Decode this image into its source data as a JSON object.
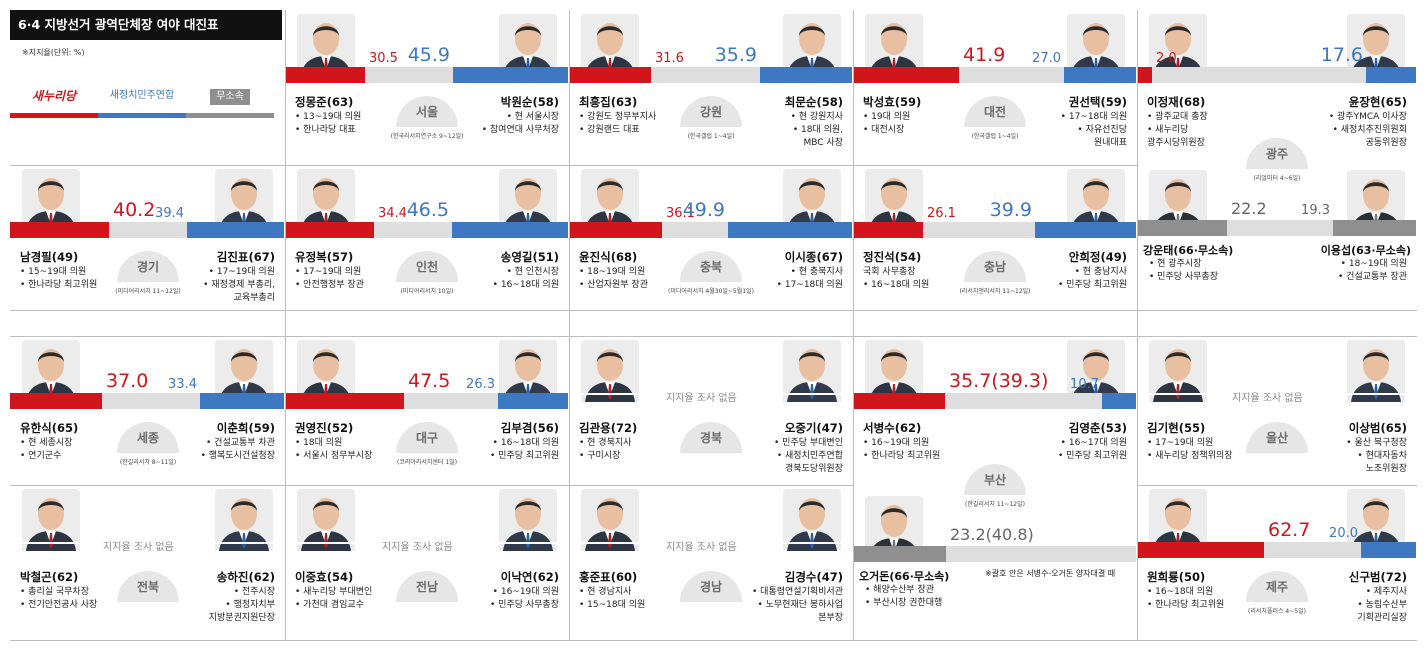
{
  "header": {
    "title": "6·4 지방선거 광역단체장 여야 대진표",
    "unit": "※지지율(단위: %)",
    "parties": [
      {
        "label": "새누리당",
        "color": "#d0161b"
      },
      {
        "label": "새정치민주연합",
        "color": "#3f78c2"
      },
      {
        "label": "무소속",
        "color": "#8f8f8f"
      }
    ]
  },
  "no_survey_label": "지지율 조사 없음",
  "regions": [
    {
      "region": "서울",
      "source": "(한국리서치연구소 9~12일)",
      "left": {
        "name": "정몽준(63)",
        "pct": "30.5",
        "lines": [
          "• 13~19대 의원",
          "• 한나라당 대표"
        ]
      },
      "right": {
        "name": "박원순(58)",
        "pct": "45.9",
        "lines": [
          "• 현 서울시장",
          "• 참여연대 사무처장"
        ]
      }
    },
    {
      "region": "강원",
      "source": "(한국갤럽 1~4일)",
      "left": {
        "name": "최흥집(63)",
        "pct": "31.6",
        "lines": [
          "• 강원도 정무부지사",
          "• 강원랜드 대표"
        ]
      },
      "right": {
        "name": "최문순(58)",
        "pct": "35.9",
        "lines": [
          "• 현 강원지사",
          "• 18대 의원,",
          "MBC 사장"
        ]
      }
    },
    {
      "region": "대전",
      "source": "(한국갤럽 1~4일)",
      "left": {
        "name": "박성효(59)",
        "pct": "41.9",
        "lines": [
          "• 19대 의원",
          "• 대전시장"
        ]
      },
      "right": {
        "name": "권선택(59)",
        "pct": "27.0",
        "lines": [
          "• 17~18대 의원",
          "• 자유선진당",
          "원내대표"
        ]
      }
    },
    {
      "region": "광주",
      "source": "(리얼미터 4~6일)",
      "left": {
        "name": "이정재(68)",
        "pct": "2.0",
        "lines": [
          "• 광주교대 총장",
          "• 새누리당",
          "광주시당위원장"
        ]
      },
      "right": {
        "name": "윤장현(65)",
        "pct": "17.6",
        "lines": [
          "• 광주YMCA 이사장",
          "• 새정치추진위원회",
          "공동위원장"
        ]
      },
      "extra_left": {
        "name": "강운태(66·무소속)",
        "pct": "22.2",
        "lines": [
          "• 현 광주시장",
          "• 민주당 사무총장"
        ]
      },
      "extra_right": {
        "name": "이용섭(63·무소속)",
        "pct": "19.3",
        "lines": [
          "• 18~19대 의원",
          "• 건설교통부 장관"
        ]
      }
    },
    {
      "region": "경기",
      "source": "(미디어리서치 11~12일)",
      "left": {
        "name": "남경필(49)",
        "pct": "40.2",
        "lines": [
          "• 15~19대 의원",
          "• 한나라당 최고위원"
        ]
      },
      "right": {
        "name": "김진표(67)",
        "pct": "39.4",
        "lines": [
          "• 17~19대 의원",
          "• 재정경제 부총리,",
          "교육부총리"
        ]
      }
    },
    {
      "region": "인천",
      "source": "(미디어리서치 10일)",
      "left": {
        "name": "유정복(57)",
        "pct": "34.4",
        "lines": [
          "• 17~19대 의원",
          "• 안전행정부 장관"
        ]
      },
      "right": {
        "name": "송영길(51)",
        "pct": "46.5",
        "lines": [
          "• 현 인천시장",
          "• 16~18대 의원"
        ]
      }
    },
    {
      "region": "충북",
      "source": "(미디어리서치 4월30일~5월1일)",
      "left": {
        "name": "윤진식(68)",
        "pct": "36.1",
        "lines": [
          "• 18~19대 의원",
          "• 산업자원부 장관"
        ]
      },
      "right": {
        "name": "이시종(67)",
        "pct": "49.9",
        "lines": [
          "• 현 충북지사",
          "• 17~18대 의원"
        ]
      }
    },
    {
      "region": "충남",
      "source": "(리서치앤리서치 11~12일)",
      "left": {
        "name": "정진석(54)",
        "pct": "26.1",
        "lines": [
          "국회 사무총장",
          "• 16~18대 의원"
        ]
      },
      "right": {
        "name": "안희정(49)",
        "pct": "39.9",
        "lines": [
          "• 현 충남지사",
          "• 민주당 최고위원"
        ]
      }
    },
    {
      "region": "세종",
      "source": "(한길리서치 8~11일)",
      "left": {
        "name": "유한식(65)",
        "pct": "37.0",
        "lines": [
          "• 현 세종시장",
          "• 연기군수"
        ]
      },
      "right": {
        "name": "이춘희(59)",
        "pct": "33.4",
        "lines": [
          "• 건설교통부 차관",
          "• 행복도시건설청장"
        ]
      }
    },
    {
      "region": "대구",
      "source": "(코리아리서치센터 1일)",
      "left": {
        "name": "권영진(52)",
        "pct": "47.5",
        "lines": [
          "• 18대 의원",
          "• 서울시 정무부시장"
        ]
      },
      "right": {
        "name": "김부겸(56)",
        "pct": "26.3",
        "lines": [
          "• 16~18대 의원",
          "• 민주당 최고위원"
        ]
      }
    },
    {
      "region": "경북",
      "source": "",
      "left": {
        "name": "김관용(72)",
        "pct": "",
        "lines": [
          "• 현 경북지사",
          "• 구미시장"
        ]
      },
      "right": {
        "name": "오중기(47)",
        "pct": "",
        "lines": [
          "• 민주당 부대변인",
          "• 새정치민주연합",
          "경북도당위원장"
        ]
      }
    },
    {
      "region": "부산",
      "source": "(한길리서치 11~12일)",
      "left": {
        "name": "서병수(62)",
        "pct": "35.7(39.3)",
        "lines": [
          "• 16~19대 의원",
          "• 한나라당 최고위원"
        ]
      },
      "right": {
        "name": "김영춘(53)",
        "pct": "10.7",
        "lines": [
          "• 16~17대 의원",
          "• 민주당 최고위원"
        ]
      },
      "extra_left": {
        "name": "오거돈(66·무소속)",
        "pct": "23.2(40.8)",
        "lines": [
          "• 해양수산부 장관",
          "• 부산시장 권한대행"
        ]
      },
      "note": "※괄호 안은 서병수-오거돈 양자대결 때"
    },
    {
      "region": "울산",
      "source": "",
      "left": {
        "name": "김기현(55)",
        "pct": "",
        "lines": [
          "• 17~19대 의원",
          "• 새누리당 정책위의장"
        ]
      },
      "right": {
        "name": "이상범(65)",
        "pct": "",
        "lines": [
          "• 울산 북구청장",
          "• 현대자동차",
          "노조위원장"
        ]
      }
    },
    {
      "region": "전북",
      "source": "",
      "left": {
        "name": "박철곤(62)",
        "pct": "",
        "lines": [
          "• 총리실 국무차장",
          "• 전기안전공사 사장"
        ]
      },
      "right": {
        "name": "송하진(62)",
        "pct": "",
        "lines": [
          "• 전주시장",
          "• 행정자치부",
          "지방분권지원단장"
        ]
      }
    },
    {
      "region": "전남",
      "source": "",
      "left": {
        "name": "이중효(54)",
        "pct": "",
        "lines": [
          "• 새누리당 부대변인",
          "• 가천대 겸임교수"
        ]
      },
      "right": {
        "name": "이낙연(62)",
        "pct": "",
        "lines": [
          "• 16~19대 의원",
          "• 민주당 사무총장"
        ]
      }
    },
    {
      "region": "경남",
      "source": "",
      "left": {
        "name": "홍준표(60)",
        "pct": "",
        "lines": [
          "• 현 경남지사",
          "• 15~18대 의원"
        ]
      },
      "right": {
        "name": "김경수(47)",
        "pct": "",
        "lines": [
          "• 대통령연설기획비서관",
          "• 노무현재단 봉하사업",
          "본부장"
        ]
      }
    },
    {
      "region": "제주",
      "source": "(리서치플러스 4~5일)",
      "left": {
        "name": "원희룡(50)",
        "pct": "62.7",
        "lines": [
          "• 16~18대 의원",
          "• 한나라당 최고위원"
        ]
      },
      "right": {
        "name": "신구범(72)",
        "pct": "20.0",
        "lines": [
          "• 제주지사",
          "• 농림수산부",
          "기획관리실장"
        ]
      }
    }
  ]
}
